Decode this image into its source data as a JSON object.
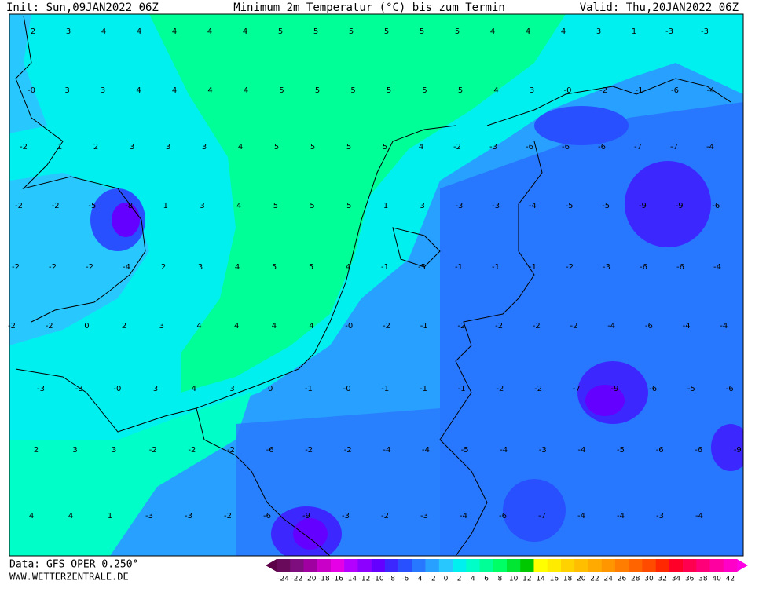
{
  "header": {
    "init": "Init: Sun,09JAN2022 06Z",
    "title": "Minimum 2m Temperatur (°C) bis zum Termin",
    "valid": "Valid: Thu,20JAN2022 06Z"
  },
  "map": {
    "labels": [
      [
        2,
        3,
        4,
        4,
        4,
        4,
        4,
        5,
        5,
        5,
        5,
        5,
        5,
        4,
        4,
        4,
        3,
        1,
        -3,
        -3
      ],
      [
        "-0",
        3,
        3,
        4,
        4,
        4,
        4,
        5,
        5,
        5,
        5,
        5,
        5,
        4,
        3,
        "-0",
        -2,
        -1,
        -6,
        -4
      ],
      [
        -2,
        1,
        2,
        3,
        3,
        3,
        4,
        5,
        5,
        5,
        5,
        4,
        -2,
        -3,
        -6,
        -6,
        -6,
        -7,
        -7,
        -4
      ],
      [
        -2,
        -2,
        -5,
        -8,
        1,
        3,
        4,
        5,
        5,
        5,
        1,
        3,
        -3,
        -3,
        -4,
        -5,
        -5,
        -9,
        -9,
        -6
      ],
      [
        -2,
        -2,
        -2,
        -4,
        2,
        3,
        4,
        5,
        5,
        4,
        -1,
        -5,
        -1,
        -1,
        -1,
        -2,
        -3,
        -6,
        -6,
        -4
      ],
      [
        -2,
        -2,
        0,
        2,
        3,
        4,
        4,
        4,
        4,
        "-0",
        -2,
        -1,
        -2,
        -2,
        -2,
        -2,
        -4,
        -6,
        -4,
        -4
      ],
      [
        -3,
        -3,
        "-0",
        3,
        4,
        3,
        0,
        -1,
        "-0",
        -1,
        -1,
        -1,
        -2,
        -2,
        -7,
        -9,
        -6,
        -5,
        -6
      ],
      [
        2,
        3,
        3,
        -2,
        -2,
        -2,
        -6,
        -2,
        -2,
        -4,
        -4,
        -5,
        -4,
        -3,
        -4,
        -5,
        -6,
        -6,
        -9
      ],
      [
        4,
        4,
        1,
        -3,
        -3,
        -2,
        -6,
        -9,
        -3,
        -2,
        -3,
        -4,
        -6,
        -7,
        -4,
        -4,
        -3,
        -4
      ]
    ]
  },
  "colorbar": {
    "ticks": [
      -24,
      -22,
      -20,
      -18,
      -16,
      -14,
      -12,
      -10,
      -8,
      -6,
      -4,
      -2,
      0,
      2,
      4,
      6,
      8,
      10,
      12,
      14,
      16,
      18,
      20,
      22,
      24,
      26,
      28,
      30,
      32,
      34,
      36,
      38,
      40,
      42
    ],
    "colors": [
      "#6a0a5a",
      "#7e0e7e",
      "#a000a0",
      "#c800c8",
      "#e600e6",
      "#b400ff",
      "#8c00ff",
      "#6400ff",
      "#3c28ff",
      "#2850ff",
      "#2878ff",
      "#28a0ff",
      "#28c8ff",
      "#00f0f0",
      "#00ffc8",
      "#00ff96",
      "#00ff64",
      "#00e632",
      "#00c800",
      "#ffff00",
      "#ffeb00",
      "#ffd200",
      "#ffbe00",
      "#ffaa00",
      "#ff9600",
      "#ff7d00",
      "#ff6400",
      "#ff4b00",
      "#ff2800",
      "#ff0028",
      "#ff0050",
      "#ff0078",
      "#ff00a0",
      "#ff00c8"
    ]
  },
  "footer": {
    "data": "Data: GFS OPER 0.250°",
    "site": "WWW.WETTERZENTRALE.DE"
  }
}
